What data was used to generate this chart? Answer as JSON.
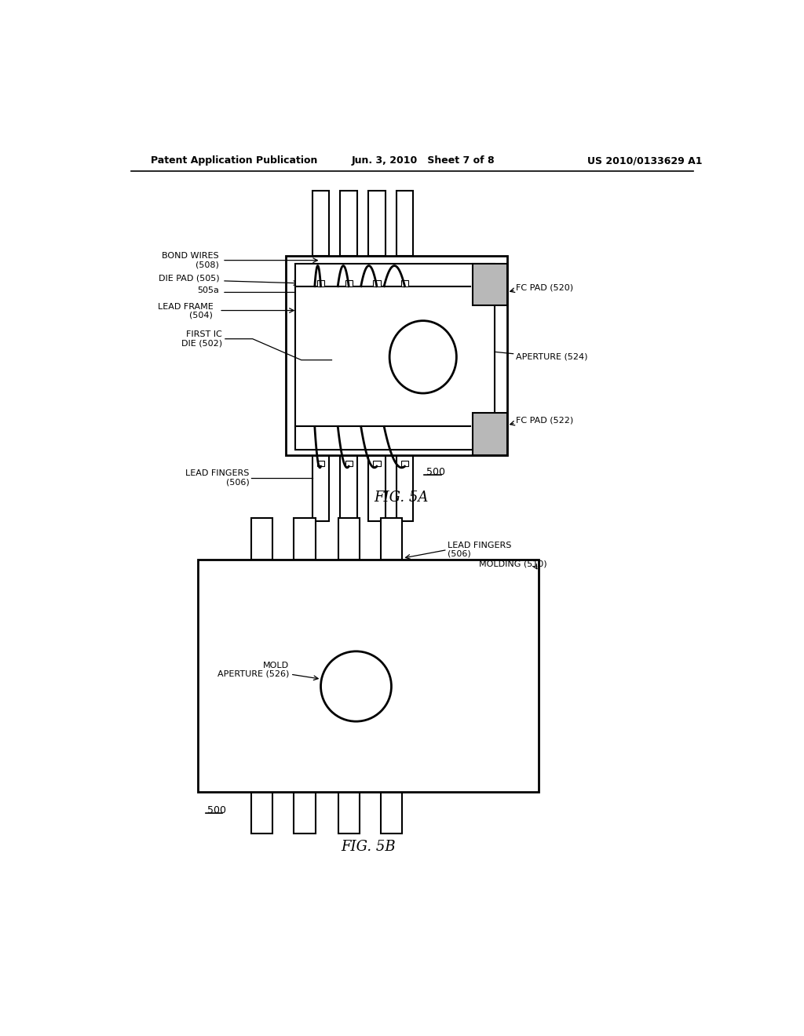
{
  "bg_color": "#ffffff",
  "line_color": "#000000",
  "header_left": "Patent Application Publication",
  "header_mid": "Jun. 3, 2010   Sheet 7 of 8",
  "header_right": "US 2010/0133629 A1",
  "fig5a_label": "FIG. 5A",
  "fig5b_label": "FIG. 5B"
}
